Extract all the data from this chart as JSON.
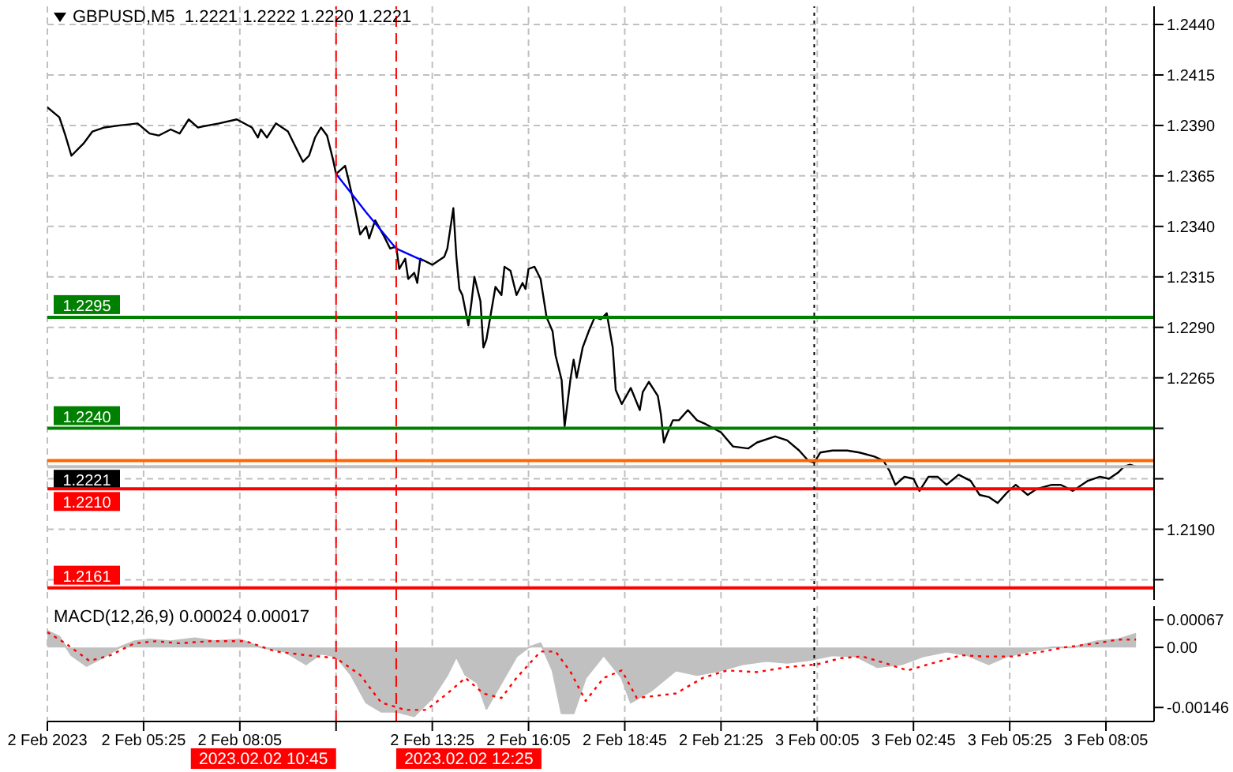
{
  "chart_data": [
    {
      "type": "line",
      "title": "GBPUSD,M5  1.2221 1.2222 1.2220 1.2221",
      "tick_labels": "y",
      "grid": true,
      "marker": "none",
      "xlim": [
        "2023-02-02T02:45",
        "2023-02-03T09:25"
      ],
      "xticks": [
        {
          "value": "2023-02-02T02:45",
          "label": null
        },
        {
          "value": "2023-02-02T05:25",
          "label": null
        },
        {
          "value": "2023-02-02T08:05",
          "label": null
        },
        {
          "value": "2023-02-02T10:45",
          "label": null
        },
        {
          "value": "2023-02-02T13:25",
          "label": null
        },
        {
          "value": "2023-02-02T16:05",
          "label": null
        },
        {
          "value": "2023-02-02T18:45",
          "label": null
        },
        {
          "value": "2023-02-02T21:25",
          "label": null
        },
        {
          "value": "2023-02-03T00:05",
          "label": null
        },
        {
          "value": "2023-02-03T02:45",
          "label": null
        },
        {
          "value": "2023-02-03T05:25",
          "label": null
        },
        {
          "value": "2023-02-03T08:05",
          "label": null
        }
      ],
      "ylim": [
        1.2155,
        1.2449
      ],
      "yticks": [
        {
          "value": 1.244,
          "label": "1.2440"
        },
        {
          "value": 1.2415,
          "label": "1.2415"
        },
        {
          "value": 1.239,
          "label": "1.2390"
        },
        {
          "value": 1.2365,
          "label": "1.2365"
        },
        {
          "value": 1.234,
          "label": "1.2340"
        },
        {
          "value": 1.2315,
          "label": "1.2315"
        },
        {
          "value": 1.229,
          "label": "1.2290"
        },
        {
          "value": 1.2265,
          "label": "1.2265"
        },
        {
          "value": 1.224,
          "label": null
        },
        {
          "value": 1.2215,
          "label": null
        },
        {
          "value": 1.219,
          "label": "1.2190"
        },
        {
          "value": 1.2165,
          "label": null
        }
      ],
      "series": [
        {
          "type": "line",
          "color": "#000000",
          "x": [
            "2023-02-02T02:45",
            "2023-02-02T03:05",
            "2023-02-02T03:15",
            "2023-02-02T03:25",
            "2023-02-02T03:45",
            "2023-02-02T04:00",
            "2023-02-02T04:20",
            "2023-02-02T04:45",
            "2023-02-02T05:15",
            "2023-02-02T05:35",
            "2023-02-02T05:50",
            "2023-02-02T06:10",
            "2023-02-02T06:25",
            "2023-02-02T06:40",
            "2023-02-02T06:55",
            "2023-02-02T07:30",
            "2023-02-02T08:00",
            "2023-02-02T08:25",
            "2023-02-02T08:35",
            "2023-02-02T08:40",
            "2023-02-02T08:50",
            "2023-02-02T09:05",
            "2023-02-02T09:25",
            "2023-02-02T09:35",
            "2023-02-02T09:50",
            "2023-02-02T10:00",
            "2023-02-02T10:10",
            "2023-02-02T10:20",
            "2023-02-02T10:30",
            "2023-02-02T10:40",
            "2023-02-02T10:45",
            "2023-02-02T11:00",
            "2023-02-02T11:05",
            "2023-02-02T11:15",
            "2023-02-02T11:25",
            "2023-02-02T11:35",
            "2023-02-02T11:40",
            "2023-02-02T11:50",
            "2023-02-02T12:05",
            "2023-02-02T12:15",
            "2023-02-02T12:25",
            "2023-02-02T12:30",
            "2023-02-02T12:40",
            "2023-02-02T12:45",
            "2023-02-02T12:55",
            "2023-02-02T13:00",
            "2023-02-02T13:05",
            "2023-02-02T13:25",
            "2023-02-02T13:45",
            "2023-02-02T13:50",
            "2023-02-02T14:00",
            "2023-02-02T14:05",
            "2023-02-02T14:10",
            "2023-02-02T14:15",
            "2023-02-02T14:25",
            "2023-02-02T14:30",
            "2023-02-02T14:35",
            "2023-02-02T14:45",
            "2023-02-02T14:50",
            "2023-02-02T14:55",
            "2023-02-02T15:10",
            "2023-02-02T15:20",
            "2023-02-02T15:25",
            "2023-02-02T15:35",
            "2023-02-02T15:45",
            "2023-02-02T15:55",
            "2023-02-02T16:00",
            "2023-02-02T16:05",
            "2023-02-02T16:15",
            "2023-02-02T16:25",
            "2023-02-02T16:35",
            "2023-02-02T16:45",
            "2023-02-02T16:50",
            "2023-02-02T17:00",
            "2023-02-02T17:05",
            "2023-02-02T17:15",
            "2023-02-02T17:20",
            "2023-02-02T17:25",
            "2023-02-02T17:35",
            "2023-02-02T17:45",
            "2023-02-02T17:55",
            "2023-02-02T18:05",
            "2023-02-02T18:15",
            "2023-02-02T18:25",
            "2023-02-02T18:30",
            "2023-02-02T18:40",
            "2023-02-02T18:55",
            "2023-02-02T19:10",
            "2023-02-02T19:15",
            "2023-02-02T19:25",
            "2023-02-02T19:40",
            "2023-02-02T19:45",
            "2023-02-02T19:50",
            "2023-02-02T19:55",
            "2023-02-02T20:05",
            "2023-02-02T20:15",
            "2023-02-02T20:30",
            "2023-02-02T20:45",
            "2023-02-02T21:00",
            "2023-02-02T21:25",
            "2023-02-02T21:45",
            "2023-02-02T22:10",
            "2023-02-02T22:25",
            "2023-02-02T22:55",
            "2023-02-02T23:15",
            "2023-02-02T23:35",
            "2023-02-02T23:50",
            "2023-02-03T00:00",
            "2023-02-03T00:10",
            "2023-02-03T00:30",
            "2023-02-03T00:55",
            "2023-02-03T01:15",
            "2023-02-03T01:40",
            "2023-02-03T01:55",
            "2023-02-03T02:05",
            "2023-02-03T02:15",
            "2023-02-03T02:30",
            "2023-02-03T02:45",
            "2023-02-03T02:55",
            "2023-02-03T03:10",
            "2023-02-03T03:25",
            "2023-02-03T03:40",
            "2023-02-03T04:00",
            "2023-02-03T04:20",
            "2023-02-03T04:35",
            "2023-02-03T04:50",
            "2023-02-03T05:05",
            "2023-02-03T05:20",
            "2023-02-03T05:35",
            "2023-02-03T05:55",
            "2023-02-03T06:10",
            "2023-02-03T06:35",
            "2023-02-03T06:50",
            "2023-02-03T07:10",
            "2023-02-03T07:35",
            "2023-02-03T07:55",
            "2023-02-03T08:10",
            "2023-02-03T08:25",
            "2023-02-03T08:35",
            "2023-02-03T08:45",
            "2023-02-03T08:55"
          ],
          "values": [
            1.2399,
            1.2394,
            1.2385,
            1.2375,
            1.2381,
            1.2387,
            1.2389,
            1.239,
            1.2391,
            1.2386,
            1.2385,
            1.2388,
            1.2386,
            1.2393,
            1.2389,
            1.2391,
            1.2393,
            1.2389,
            1.2384,
            1.2388,
            1.2384,
            1.2391,
            1.2387,
            1.2381,
            1.2372,
            1.2375,
            1.2384,
            1.2389,
            1.2385,
            1.2373,
            1.2366,
            1.237,
            1.2364,
            1.2351,
            1.2336,
            1.234,
            1.2334,
            1.2343,
            1.2335,
            1.2329,
            1.233,
            1.2319,
            1.2324,
            1.2314,
            1.2317,
            1.2312,
            1.2324,
            1.2321,
            1.2325,
            1.2329,
            1.2349,
            1.2325,
            1.2309,
            1.2306,
            1.2291,
            1.2302,
            1.2315,
            1.2303,
            1.228,
            1.2284,
            1.231,
            1.2306,
            1.232,
            1.2318,
            1.2306,
            1.2312,
            1.2309,
            1.2319,
            1.232,
            1.2314,
            1.2295,
            1.2288,
            1.2276,
            1.2264,
            1.2241,
            1.2265,
            1.2274,
            1.2265,
            1.228,
            1.2288,
            1.2295,
            1.2294,
            1.2297,
            1.228,
            1.2259,
            1.2252,
            1.226,
            1.2249,
            1.2258,
            1.2263,
            1.2256,
            1.2247,
            1.2233,
            1.2237,
            1.2244,
            1.2244,
            1.2249,
            1.2244,
            1.2242,
            1.2238,
            1.2231,
            1.223,
            1.2233,
            1.2236,
            1.2234,
            1.2229,
            1.2224,
            1.2223,
            1.2228,
            1.2229,
            1.2229,
            1.2228,
            1.2226,
            1.2224,
            1.2219,
            1.2212,
            1.2216,
            1.2215,
            1.2209,
            1.2216,
            1.2216,
            1.2212,
            1.2217,
            1.2214,
            1.2207,
            1.2206,
            1.2203,
            1.2208,
            1.2212,
            1.2207,
            1.221,
            1.2212,
            1.2212,
            1.2209,
            1.2214,
            1.2216,
            1.2215,
            1.2218,
            1.2221,
            1.2222,
            1.2221
          ]
        },
        {
          "type": "line",
          "color": "#0000ff",
          "x": [
            "2023-02-02T10:45",
            "2023-02-02T11:35",
            "2023-02-02T12:25",
            "2023-02-02T13:10"
          ],
          "values": [
            1.2366,
            1.2347,
            1.2329,
            1.2323
          ]
        }
      ],
      "ref_lines": [
        {
          "axis": "y",
          "value": 1.2295,
          "label": "1.2295",
          "color": "#008000",
          "line_style": "solid"
        },
        {
          "axis": "y",
          "value": 1.224,
          "label": "1.2240",
          "color": "#008000",
          "line_style": "solid"
        },
        {
          "axis": "y",
          "value": 1.2224,
          "label": null,
          "color": "#ff6600",
          "line_style": "solid"
        },
        {
          "axis": "y",
          "value": 1.2221,
          "label": "1.2221",
          "color": "#c0c0c0",
          "line_style": "solid"
        },
        {
          "axis": "y",
          "value": 1.221,
          "label": "1.2210",
          "color": "#ff0000",
          "line_style": "solid"
        },
        {
          "axis": "y",
          "value": 1.2161,
          "label": "1.2161",
          "color": "#ff0000",
          "line_style": "solid"
        },
        {
          "axis": "x",
          "value": "2023-02-02T10:45",
          "label": null,
          "color": "#ff0000",
          "line_style": "dashed"
        },
        {
          "axis": "x",
          "value": "2023-02-02T12:25",
          "label": null,
          "color": "#ff0000",
          "line_style": "dashed"
        },
        {
          "axis": "x",
          "value": "2023-02-03T00:00",
          "label": null,
          "color": "#000000",
          "line_style": "dotted"
        }
      ]
    },
    {
      "type": "line",
      "title": "MACD(12,26,9) 0.00024 0.00017",
      "grid": "x",
      "marker": "none",
      "xlim": [
        "2023-02-02T02:45",
        "2023-02-03T09:25"
      ],
      "xticks": [
        {
          "value": "2023-02-02T02:45",
          "label": "2 Feb 2023"
        },
        {
          "value": "2023-02-02T05:25",
          "label": "2 Feb 05:25"
        },
        {
          "value": "2023-02-02T08:05",
          "label": "2 Feb 08:05"
        },
        {
          "value": "2023-02-02T10:45",
          "label": null
        },
        {
          "value": "2023-02-02T13:25",
          "label": "2 Feb 13:25"
        },
        {
          "value": "2023-02-02T16:05",
          "label": "2 Feb 16:05"
        },
        {
          "value": "2023-02-02T18:45",
          "label": "2 Feb 18:45"
        },
        {
          "value": "2023-02-02T21:25",
          "label": "2 Feb 21:25"
        },
        {
          "value": "2023-02-03T00:05",
          "label": "3 Feb 00:05"
        },
        {
          "value": "2023-02-03T02:45",
          "label": "3 Feb 02:45"
        },
        {
          "value": "2023-02-03T05:25",
          "label": "3 Feb 05:25"
        },
        {
          "value": "2023-02-03T08:05",
          "label": "3 Feb 08:05"
        }
      ],
      "ylim": [
        -0.0018,
        0.001
      ],
      "yticks": [
        0.00067,
        {
          "value": 0,
          "label": "0.00"
        },
        -0.00146
      ],
      "series": [
        {
          "type": "area",
          "color": "#c0c0c0",
          "x": [
            "2023-02-02T02:45",
            "2023-02-02T03:05",
            "2023-02-02T03:25",
            "2023-02-02T03:50",
            "2023-02-02T04:20",
            "2023-02-02T04:45",
            "2023-02-02T05:10",
            "2023-02-02T05:35",
            "2023-02-02T06:10",
            "2023-02-02T06:50",
            "2023-02-02T07:25",
            "2023-02-02T08:05",
            "2023-02-02T08:40",
            "2023-02-02T09:20",
            "2023-02-02T09:55",
            "2023-02-02T10:20",
            "2023-02-02T10:45",
            "2023-02-02T11:10",
            "2023-02-02T11:35",
            "2023-02-02T12:00",
            "2023-02-02T12:25",
            "2023-02-02T12:55",
            "2023-02-02T13:25",
            "2023-02-02T13:50",
            "2023-02-02T14:05",
            "2023-02-02T14:20",
            "2023-02-02T14:40",
            "2023-02-02T14:55",
            "2023-02-02T15:20",
            "2023-02-02T15:45",
            "2023-02-02T16:05",
            "2023-02-02T16:25",
            "2023-02-02T16:45",
            "2023-02-02T17:00",
            "2023-02-02T17:20",
            "2023-02-02T17:40",
            "2023-02-02T18:10",
            "2023-02-02T18:40",
            "2023-02-02T18:55",
            "2023-02-02T19:30",
            "2023-02-02T20:10",
            "2023-02-02T20:45",
            "2023-02-02T21:25",
            "2023-02-02T22:00",
            "2023-02-02T22:40",
            "2023-02-02T23:15",
            "2023-02-02T23:55",
            "2023-02-03T00:30",
            "2023-02-03T01:10",
            "2023-02-03T01:45",
            "2023-02-03T02:25",
            "2023-02-03T03:00",
            "2023-02-03T03:40",
            "2023-02-03T04:15",
            "2023-02-03T04:50",
            "2023-02-03T05:20",
            "2023-02-03T05:55",
            "2023-02-03T06:35",
            "2023-02-03T07:10",
            "2023-02-03T07:50",
            "2023-02-03T08:25",
            "2023-02-03T08:55"
          ],
          "values": [
            0.0004,
            0.00026,
            -0.00019,
            -0.00045,
            -0.00022,
            0,
            0.00015,
            0.00019,
            0.00015,
            0.00022,
            0.00015,
            0.00019,
            0,
            -0.0001,
            -0.00041,
            -0.00015,
            -0.00022,
            -0.00067,
            -0.00134,
            -0.00156,
            -0.00156,
            -0.00167,
            -0.00123,
            -0.00067,
            -0.00022,
            -0.00067,
            -0.00086,
            -0.00149,
            -0.00086,
            -0.00022,
            0,
            0.0001,
            -0.00056,
            -0.0016,
            -0.0016,
            -0.00074,
            -0.00019,
            -0.00074,
            -0.00134,
            -0.00104,
            -0.00056,
            -0.00067,
            -0.00056,
            -0.00041,
            -0.00033,
            -0.00037,
            -0.0003,
            -0.00019,
            -0.00022,
            -0.00048,
            -0.00041,
            -0.00022,
            -0.0001,
            -0.00019,
            -0.00041,
            -0.00022,
            -0.0001,
            0,
            0,
            0.00015,
            0.00019,
            0.00033
          ]
        },
        {
          "type": "line",
          "color": "#ff0000",
          "line_style": "dotted",
          "x": [
            "2023-02-02T02:45",
            "2023-02-02T03:15",
            "2023-02-02T03:55",
            "2023-02-02T04:30",
            "2023-02-02T05:10",
            "2023-02-02T05:45",
            "2023-02-02T06:25",
            "2023-02-02T07:15",
            "2023-02-02T08:15",
            "2023-02-02T09:05",
            "2023-02-02T09:55",
            "2023-02-02T10:45",
            "2023-02-02T11:25",
            "2023-02-02T12:00",
            "2023-02-02T12:40",
            "2023-02-02T13:15",
            "2023-02-02T13:50",
            "2023-02-02T14:20",
            "2023-02-02T14:50",
            "2023-02-02T15:20",
            "2023-02-02T15:45",
            "2023-02-02T16:25",
            "2023-02-02T16:50",
            "2023-02-02T17:15",
            "2023-02-02T17:40",
            "2023-02-02T18:10",
            "2023-02-02T18:40",
            "2023-02-02T19:05",
            "2023-02-02T20:10",
            "2023-02-02T20:55",
            "2023-02-02T21:35",
            "2023-02-02T22:25",
            "2023-02-02T23:15",
            "2023-02-03T00:05",
            "2023-02-03T00:45",
            "2023-02-03T01:20",
            "2023-02-03T01:55",
            "2023-02-03T02:35",
            "2023-02-03T03:10",
            "2023-02-03T04:05",
            "2023-02-03T04:40",
            "2023-02-03T05:30",
            "2023-02-03T06:20",
            "2023-02-03T06:55",
            "2023-02-03T07:50",
            "2023-02-03T08:25",
            "2023-02-03T08:55"
          ],
          "values": [
            0.00037,
            0.0001,
            -0.00033,
            -0.00019,
            0.0001,
            0.00015,
            0.0001,
            0.00015,
            0.00015,
            -0.0001,
            -0.00019,
            -0.00026,
            -0.00067,
            -0.00134,
            -0.00152,
            -0.00152,
            -0.00112,
            -0.00074,
            -0.00112,
            -0.00123,
            -0.00074,
            -0.0001,
            -0.0001,
            -0.0006,
            -0.0013,
            -0.00074,
            -0.00056,
            -0.00123,
            -0.00112,
            -0.00074,
            -0.00056,
            -0.0006,
            -0.00048,
            -0.00041,
            -0.00026,
            -0.00022,
            -0.00037,
            -0.00056,
            -0.00041,
            -0.00019,
            -0.00022,
            -0.00022,
            -0.0001,
            0,
            0.0001,
            0.00019,
            0.00019
          ]
        }
      ],
      "ref_lines": [
        {
          "axis": "x",
          "value": "2023-02-02T10:45",
          "label": "2023.02.02 10:45",
          "color": "#ff0000",
          "line_style": "dashed"
        },
        {
          "axis": "x",
          "value": "2023-02-02T12:25",
          "label": "2023.02.02 12:25",
          "color": "#ff0000",
          "line_style": "dashed"
        },
        {
          "axis": "x",
          "value": "2023-02-03T00:00",
          "label": null,
          "color": "#000000",
          "line_style": "dotted"
        }
      ]
    }
  ]
}
